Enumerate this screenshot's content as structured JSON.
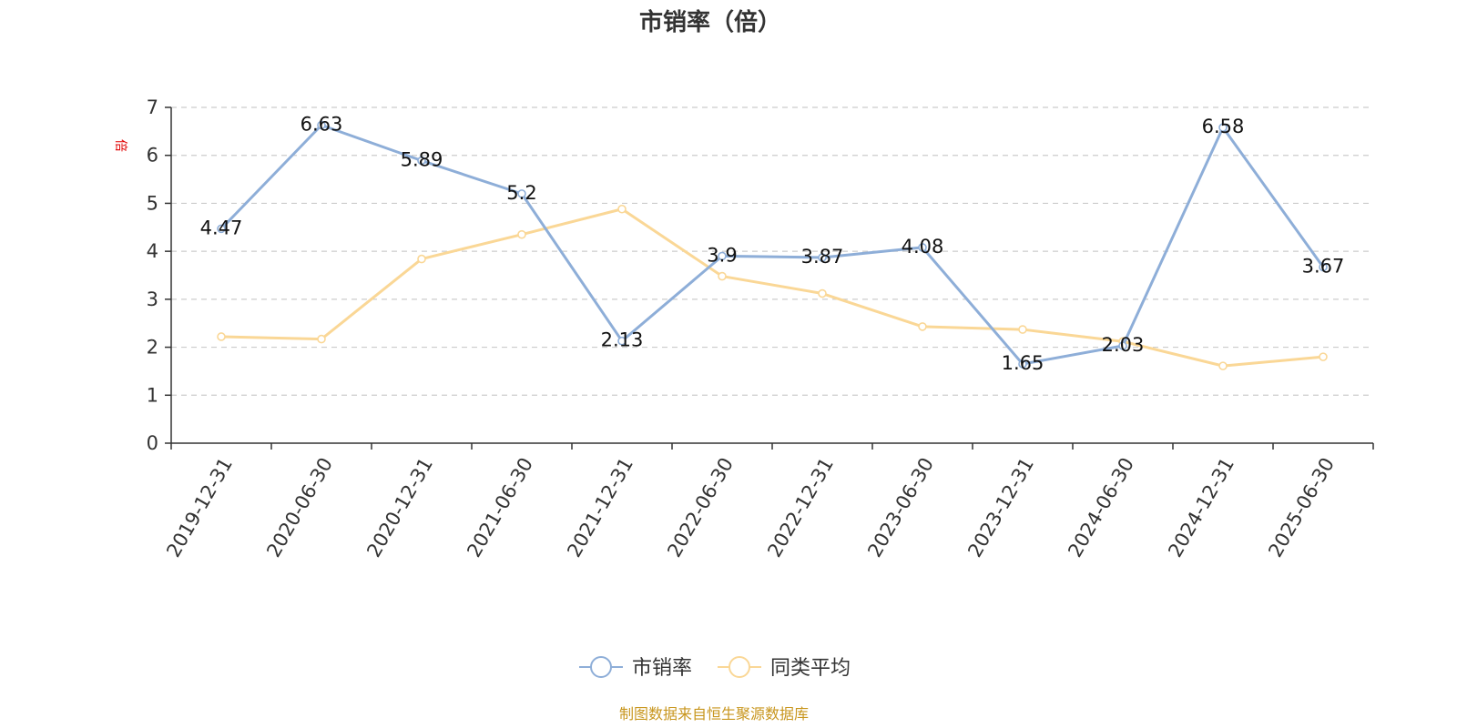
{
  "chart_data": {
    "type": "line",
    "title": "市销率（倍）",
    "ylabel": "倍",
    "xlabel": "",
    "ylim": [
      0,
      7
    ],
    "yticks": [
      0,
      1,
      2,
      3,
      4,
      5,
      6,
      7
    ],
    "grid": "horizontal-dashed",
    "legend_position": "bottom-center",
    "categories": [
      "2019-12-31",
      "2020-06-30",
      "2020-12-31",
      "2021-06-30",
      "2021-12-31",
      "2022-06-30",
      "2022-12-31",
      "2023-06-30",
      "2023-12-31",
      "2024-06-30",
      "2024-12-31",
      "2025-06-30"
    ],
    "series": [
      {
        "name": "市销率",
        "color": "#8eaed8",
        "values": [
          4.47,
          6.63,
          5.89,
          5.2,
          2.13,
          3.9,
          3.87,
          4.08,
          1.65,
          2.03,
          6.58,
          3.67
        ],
        "labels": [
          "4.47",
          "6.63",
          "5.89",
          "5.2",
          "2.13",
          "3.9",
          "3.87",
          "4.08",
          "1.65",
          "2.03",
          "6.58",
          "3.67"
        ]
      },
      {
        "name": "同类平均",
        "color": "#fad796",
        "values": [
          2.22,
          2.17,
          3.84,
          4.35,
          4.88,
          3.48,
          3.12,
          2.43,
          2.37,
          2.12,
          1.61,
          1.8
        ]
      }
    ],
    "source": "制图数据来自恒生聚源数据库"
  }
}
